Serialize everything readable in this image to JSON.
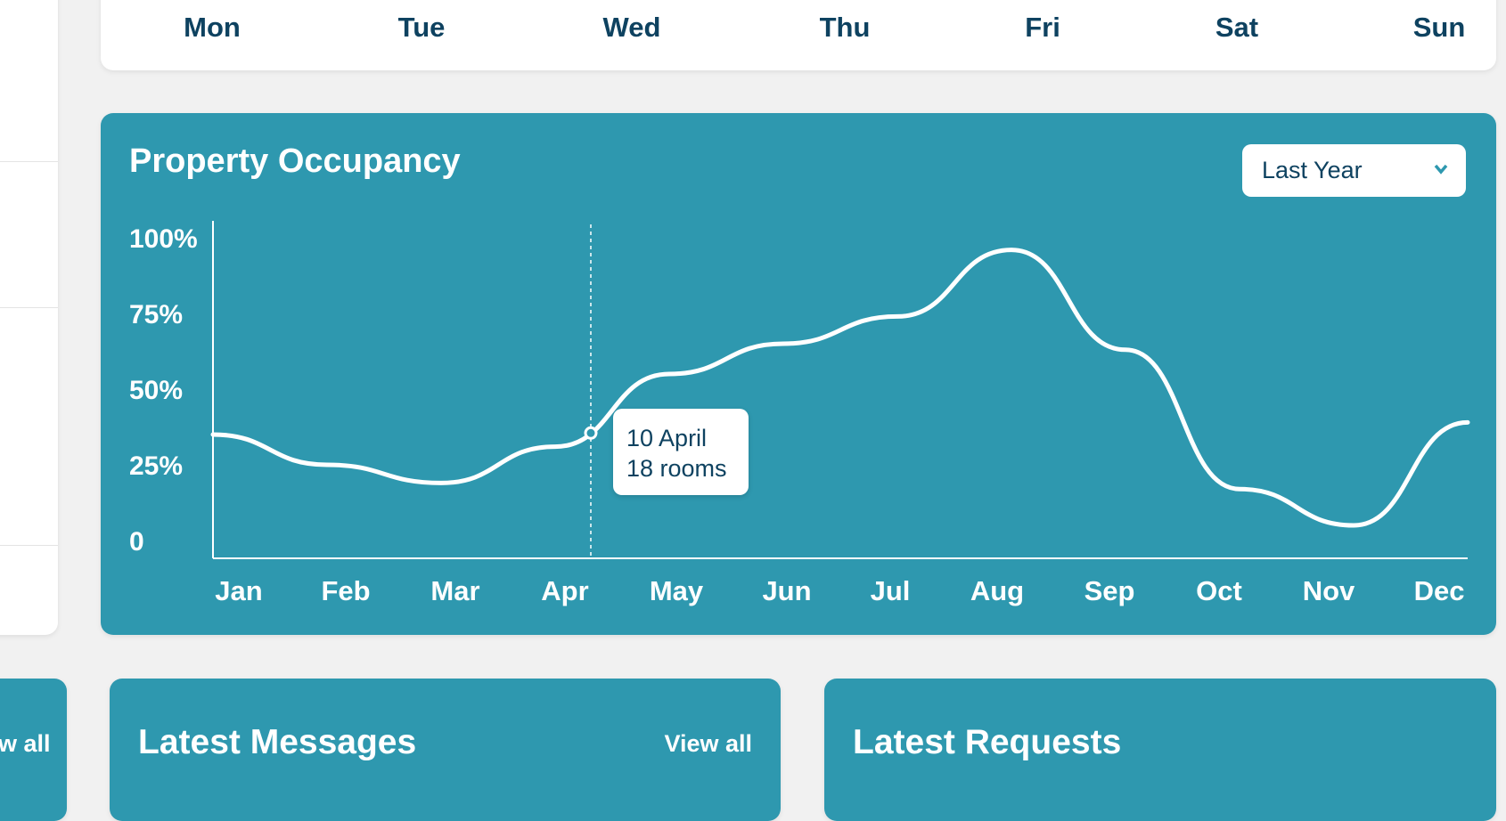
{
  "week": {
    "days": [
      "Mon",
      "Tue",
      "Wed",
      "Thu",
      "Fri",
      "Sat",
      "Sun"
    ]
  },
  "occupancy": {
    "title": "Property Occupancy",
    "range_select": {
      "value": "Last Year",
      "icon": "chevron-down-icon"
    },
    "tooltip": {
      "date": "10 April",
      "value": "18 rooms"
    },
    "colors": {
      "card": "#2E98AF",
      "text_dark": "#0E4260",
      "line": "#FFFFFF"
    }
  },
  "chart_data": {
    "type": "line",
    "title": "Property Occupancy",
    "categories": [
      "Jan",
      "Feb",
      "Mar",
      "Apr",
      "May",
      "Jun",
      "Jul",
      "Aug",
      "Sep",
      "Oct",
      "Nov",
      "Dec"
    ],
    "values": [
      35,
      25,
      19,
      31,
      55,
      65,
      74,
      96,
      63,
      17,
      5,
      39
    ],
    "y_ticks": [
      "100%",
      "75%",
      "50%",
      "25%",
      "0"
    ],
    "ylim": [
      0,
      100
    ],
    "grid": false,
    "smooth": true,
    "highlight": {
      "x": "10 April",
      "y": 35.5
    }
  },
  "bottom": {
    "partial_view_all": "w all",
    "messages": {
      "title": "Latest Messages",
      "view_all": "View all"
    },
    "requests": {
      "title": "Latest Requests"
    }
  }
}
